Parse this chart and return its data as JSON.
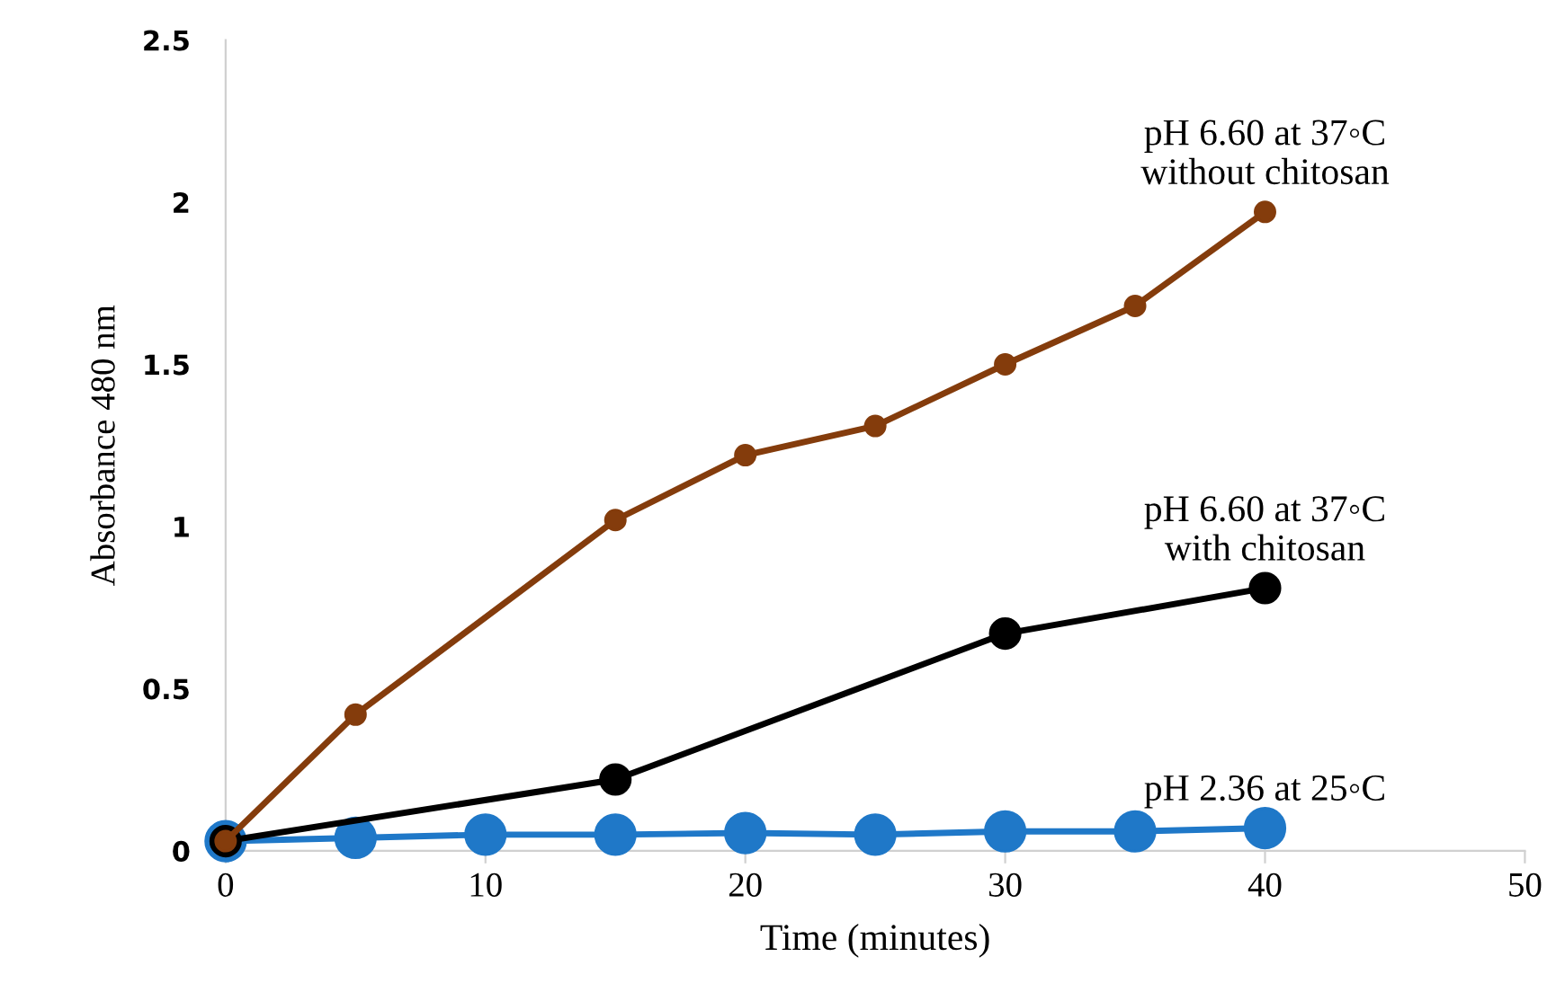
{
  "chart_data": {
    "type": "line",
    "xlabel": "Time (minutes)",
    "ylabel": "Absorbance 480 nm",
    "xlim": [
      0,
      50
    ],
    "xticks": [
      0,
      10,
      20,
      30,
      40,
      50
    ],
    "ylim": [
      0,
      2.5
    ],
    "yticks": [
      0,
      0.5,
      1,
      1.5,
      2,
      2.5
    ],
    "grid": false,
    "legend": false,
    "marker": "circle",
    "line_style": "solid",
    "series": [
      {
        "name": "pH 6.60 at 37◦C\nwithout chitosan",
        "color": "#843c0c",
        "x": [
          0,
          5,
          15,
          20,
          25,
          30,
          35,
          40
        ],
        "values": [
          0.03,
          0.42,
          1.02,
          1.22,
          1.31,
          1.5,
          1.68,
          1.97
        ]
      },
      {
        "name": "pH 6.60 at 37◦C\nwith chitosan",
        "color": "#000000",
        "x": [
          0,
          15,
          30,
          40
        ],
        "values": [
          0.03,
          0.22,
          0.67,
          0.81
        ]
      },
      {
        "name": "pH 2.36 at 25◦C",
        "color": "#1f78c8",
        "x": [
          0,
          5,
          10,
          15,
          20,
          25,
          30,
          35,
          40
        ],
        "values": [
          0.03,
          0.04,
          0.05,
          0.05,
          0.055,
          0.05,
          0.06,
          0.06,
          0.07
        ]
      }
    ]
  }
}
